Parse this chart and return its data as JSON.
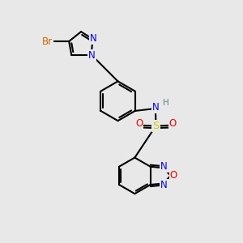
{
  "background_color": "#e8e8e8",
  "bond_color": "#000000",
  "bond_width": 1.5,
  "atom_colors": {
    "N": "#0000ee",
    "O": "#ee0000",
    "S": "#cccc00",
    "Br": "#cc6600",
    "H": "#558888",
    "C": "#000000"
  },
  "font_size": 8.5,
  "fig_width": 3.0,
  "fig_height": 3.0,
  "dpi": 100
}
